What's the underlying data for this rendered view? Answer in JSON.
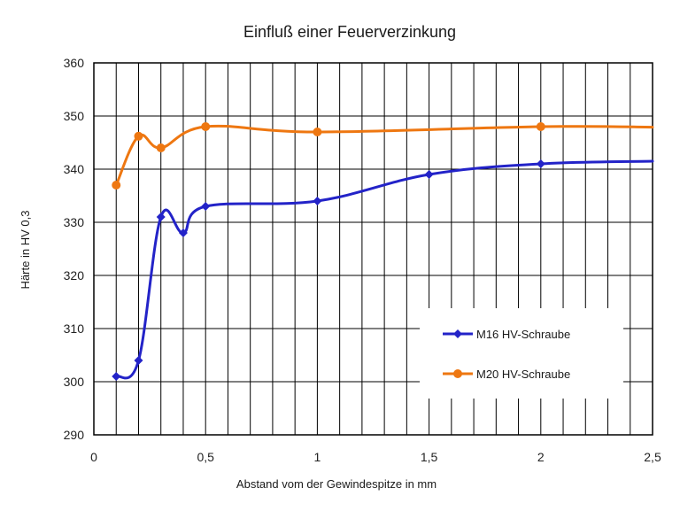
{
  "chart_data": {
    "type": "line",
    "title": "Einfluß einer Feuerverzinkung",
    "xlabel": "Abstand vom der Gewindespitze in mm",
    "ylabel": "Härte in HV 0,3",
    "xlim": [
      0,
      2.5
    ],
    "ylim": [
      290,
      360
    ],
    "x_ticks": [
      {
        "value": 0,
        "label": "0"
      },
      {
        "value": 0.5,
        "label": "0,5"
      },
      {
        "value": 1,
        "label": "1"
      },
      {
        "value": 1.5,
        "label": "1,5"
      },
      {
        "value": 2,
        "label": "2"
      },
      {
        "value": 2.5,
        "label": "2,5"
      }
    ],
    "x_minor_step": 0.1,
    "y_ticks": [
      290,
      300,
      310,
      320,
      330,
      340,
      350,
      360
    ],
    "grid": true,
    "legend_position": "bottom-right",
    "series": [
      {
        "name": "M16 HV-Schraube",
        "color": "#2323c8",
        "marker": "diamond",
        "smooth": true,
        "points": [
          [
            0.1,
            301
          ],
          [
            0.2,
            304
          ],
          [
            0.3,
            331
          ],
          [
            0.4,
            328
          ],
          [
            0.5,
            333
          ],
          [
            1.0,
            334
          ],
          [
            1.5,
            339
          ],
          [
            2.0,
            341
          ],
          [
            2.5,
            341.5
          ]
        ],
        "marked": [
          0,
          1,
          2,
          3,
          4,
          5,
          6,
          7
        ]
      },
      {
        "name": "M20 HV-Schraube",
        "color": "#ee7711",
        "marker": "circle",
        "smooth": true,
        "points": [
          [
            0.1,
            337
          ],
          [
            0.2,
            346.2
          ],
          [
            0.3,
            344
          ],
          [
            0.5,
            348
          ],
          [
            1.0,
            347
          ],
          [
            2.0,
            348
          ],
          [
            2.5,
            347.9
          ]
        ],
        "marked": [
          0,
          1,
          2,
          3,
          4,
          5
        ]
      }
    ]
  }
}
